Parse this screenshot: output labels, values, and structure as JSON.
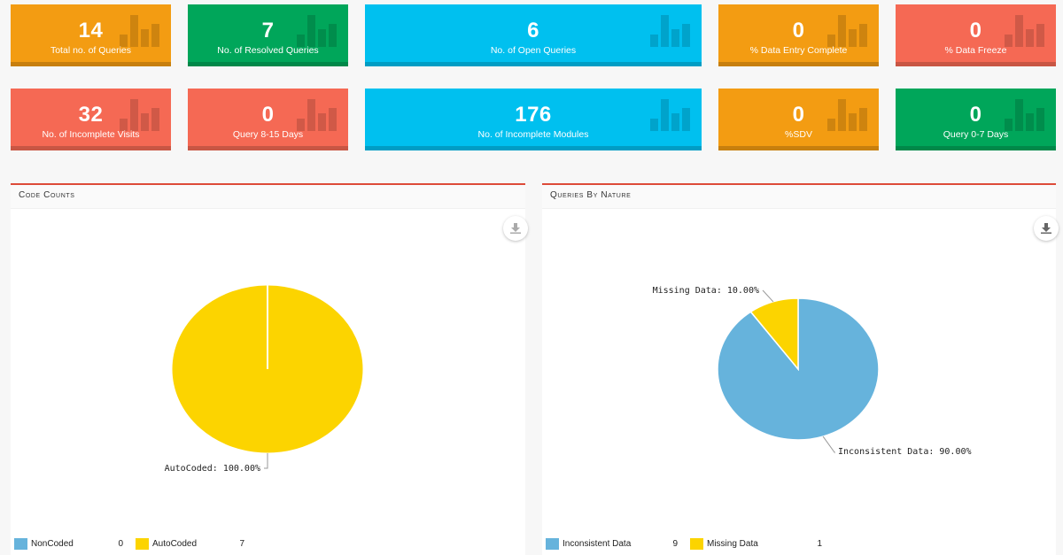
{
  "tiles": [
    {
      "value": "14",
      "label": "Total no. of Queries",
      "color": "#f39c12"
    },
    {
      "value": "7",
      "label": "No. of Resolved Queries",
      "color": "#00a65a"
    },
    {
      "value": "6",
      "label": "No. of Open Queries",
      "color": "#00c0ef"
    },
    {
      "value": "0",
      "label": "% Data Entry Complete",
      "color": "#f39c12"
    },
    {
      "value": "0",
      "label": "% Data Freeze",
      "color": "#f56954"
    },
    {
      "value": "32",
      "label": "No. of Incomplete Visits",
      "color": "#f56954"
    },
    {
      "value": "0",
      "label": "Query 8-15 Days",
      "color": "#f56954"
    },
    {
      "value": "176",
      "label": "No. of Incomplete Modules",
      "color": "#00c0ef"
    },
    {
      "value": "0",
      "label": "%SDV",
      "color": "#f39c12"
    },
    {
      "value": "0",
      "label": "Query 0-7 Days",
      "color": "#00a65a"
    }
  ],
  "panels": {
    "code_counts": {
      "title": "Code Counts",
      "legend": [
        {
          "name": "NonCoded",
          "count": "0",
          "color": "#66b3dc"
        },
        {
          "name": "AutoCoded",
          "count": "7",
          "color": "#fcd400"
        }
      ]
    },
    "queries_by_nature": {
      "title": "Queries By Nature",
      "legend": [
        {
          "name": "Inconsistent Data",
          "count": "9",
          "color": "#66b3dc"
        },
        {
          "name": "Missing Data",
          "count": "1",
          "color": "#fcd400"
        }
      ]
    }
  },
  "chart_data": [
    {
      "type": "pie",
      "title": "Code Counts",
      "categories": [
        "NonCoded",
        "AutoCoded"
      ],
      "values": [
        0,
        7
      ],
      "labels": [
        "",
        "AutoCoded: 100.00%"
      ],
      "colors": [
        "#66b3dc",
        "#fcd400"
      ]
    },
    {
      "type": "pie",
      "title": "Queries By Nature",
      "categories": [
        "Inconsistent Data",
        "Missing Data"
      ],
      "values": [
        9,
        1
      ],
      "labels": [
        "Inconsistent Data: 90.00%",
        "Missing Data: 10.00%"
      ],
      "colors": [
        "#66b3dc",
        "#fcd400"
      ]
    }
  ]
}
